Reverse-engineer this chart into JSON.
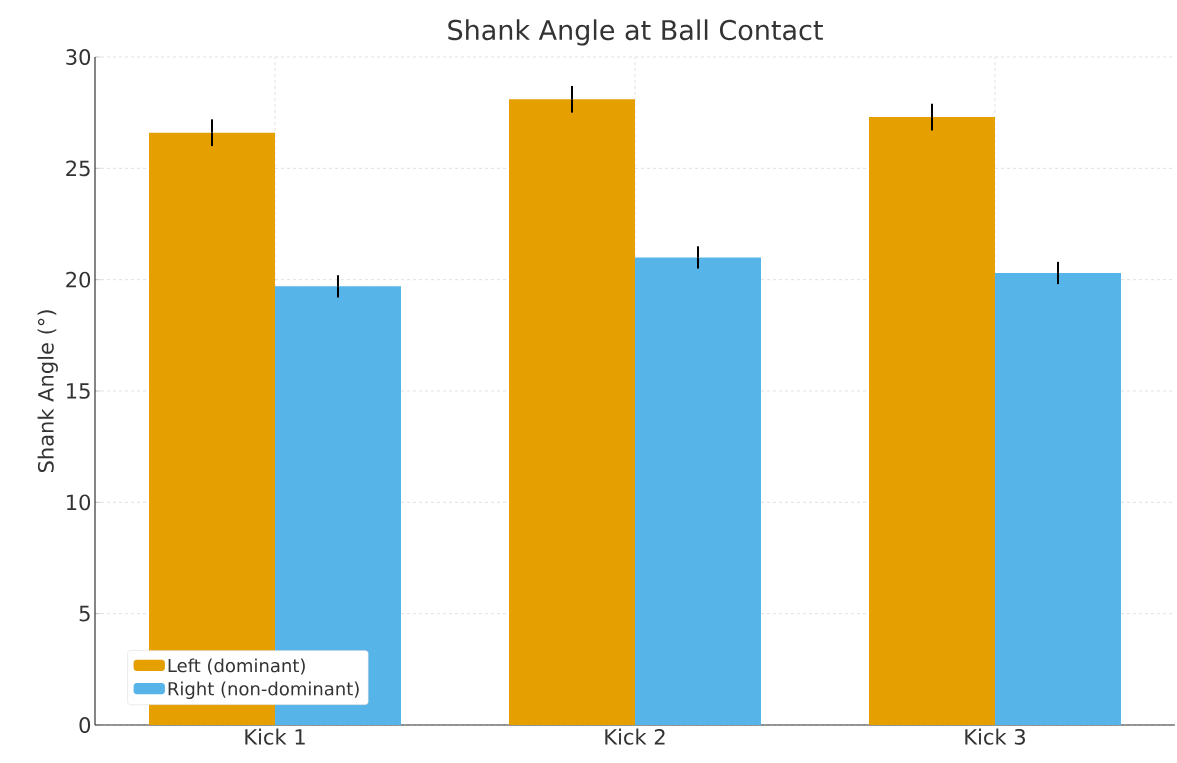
{
  "chart_data": {
    "type": "bar",
    "title": "Shank Angle at Ball Contact",
    "ylabel": "Shank Angle (°)",
    "categories": [
      "Kick 1",
      "Kick 2",
      "Kick 3"
    ],
    "series": [
      {
        "name": "Left (dominant)",
        "color": "#e69f00",
        "values": [
          26.6,
          28.1,
          27.3
        ],
        "errors": [
          0.6,
          0.6,
          0.6
        ]
      },
      {
        "name": "Right (non-dominant)",
        "color": "#56b4e9",
        "values": [
          19.7,
          21.0,
          20.3
        ],
        "errors": [
          0.5,
          0.5,
          0.5
        ]
      }
    ],
    "ylim": [
      0,
      30
    ],
    "yticks": [
      0,
      5,
      10,
      15,
      20,
      25,
      30
    ],
    "grid": true,
    "legend": "bottom left"
  }
}
